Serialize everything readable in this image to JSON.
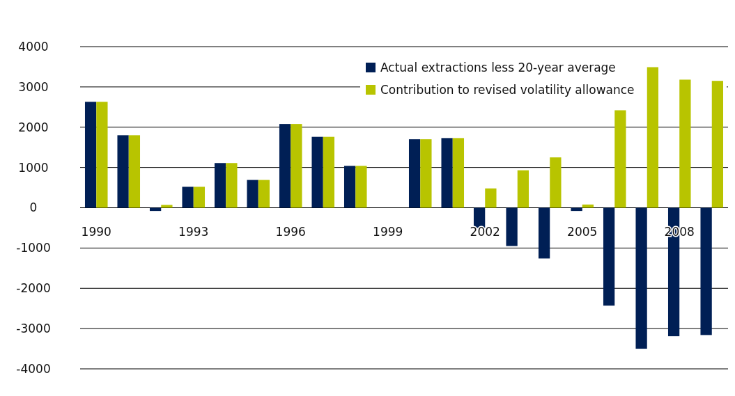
{
  "chart_data": {
    "type": "bar",
    "categories": [
      "1990",
      null,
      null,
      "1993",
      null,
      null,
      "1996",
      null,
      null,
      "1999",
      null,
      null,
      "2002",
      null,
      null,
      "2005",
      null,
      null,
      "2008",
      null
    ],
    "series": [
      {
        "name": "Actual extractions less 20-year average",
        "color": "#001f55",
        "values": [
          2630,
          1800,
          -80,
          520,
          1110,
          690,
          2080,
          1760,
          1040,
          0,
          1700,
          1730,
          -500,
          -950,
          -1260,
          -80,
          -2430,
          -3500,
          -3190,
          -3160
        ]
      },
      {
        "name": "Contribution to revised volatility allowance",
        "color": "#b8c400",
        "values": [
          2630,
          1800,
          70,
          520,
          1110,
          690,
          2080,
          1760,
          1040,
          0,
          1700,
          1730,
          480,
          930,
          1250,
          80,
          2420,
          3490,
          3180,
          3150
        ]
      }
    ],
    "ylim": [
      -4000,
      4000
    ],
    "yticks": [
      -4000,
      -3000,
      -2000,
      -1000,
      0,
      1000,
      2000,
      3000,
      4000
    ],
    "grid": "y",
    "legend": "top right"
  }
}
